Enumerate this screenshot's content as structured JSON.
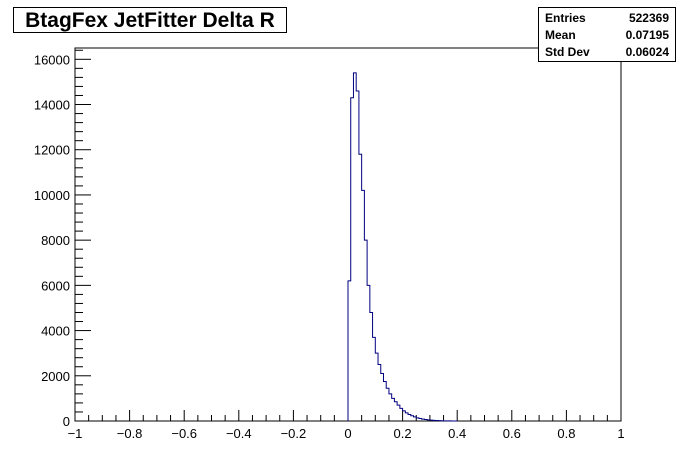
{
  "title": "BtagFex JetFitter Delta R",
  "stats": {
    "entries_label": "Entries",
    "entries_value": "522369",
    "mean_label": "Mean",
    "mean_value": "0.07195",
    "std_label": "Std Dev",
    "std_value": "0.06024"
  },
  "chart_data": {
    "type": "histogram",
    "title": "BtagFex JetFitter Delta R",
    "xlabel": "",
    "ylabel": "",
    "xlim": [
      -1,
      1
    ],
    "ylim": [
      0,
      16500
    ],
    "line_color": "#000080",
    "x_ticks": [
      -1,
      -0.8,
      -0.6,
      -0.4,
      -0.2,
      0,
      0.2,
      0.4,
      0.6,
      0.8,
      1
    ],
    "x_tick_labels": [
      "−1",
      "−0.8",
      "−0.6",
      "−0.4",
      "−0.2",
      "0",
      "0.2",
      "0.4",
      "0.6",
      "0.8",
      "1"
    ],
    "y_ticks": [
      0,
      2000,
      4000,
      6000,
      8000,
      10000,
      12000,
      14000,
      16000
    ],
    "y_tick_labels": [
      "0",
      "2000",
      "4000",
      "6000",
      "8000",
      "10000",
      "12000",
      "14000",
      "16000"
    ],
    "bin_width": 0.01,
    "bin_low_edges": [
      0.0,
      0.01,
      0.02,
      0.03,
      0.04,
      0.05,
      0.06,
      0.07,
      0.08,
      0.09,
      0.1,
      0.11,
      0.12,
      0.13,
      0.14,
      0.15,
      0.16,
      0.17,
      0.18,
      0.19,
      0.2,
      0.21,
      0.22,
      0.23,
      0.24,
      0.25,
      0.26,
      0.27,
      0.28,
      0.29,
      0.3,
      0.31,
      0.32,
      0.33,
      0.34,
      0.35,
      0.36,
      0.37,
      0.38,
      0.39
    ],
    "counts": [
      6200,
      14300,
      15400,
      14600,
      11800,
      10200,
      8000,
      6000,
      4800,
      3700,
      3000,
      2500,
      2100,
      1750,
      1450,
      1200,
      1000,
      850,
      700,
      560,
      450,
      360,
      290,
      230,
      180,
      140,
      110,
      85,
      65,
      50,
      38,
      28,
      20,
      14,
      10,
      7,
      5,
      3,
      2,
      1
    ]
  }
}
